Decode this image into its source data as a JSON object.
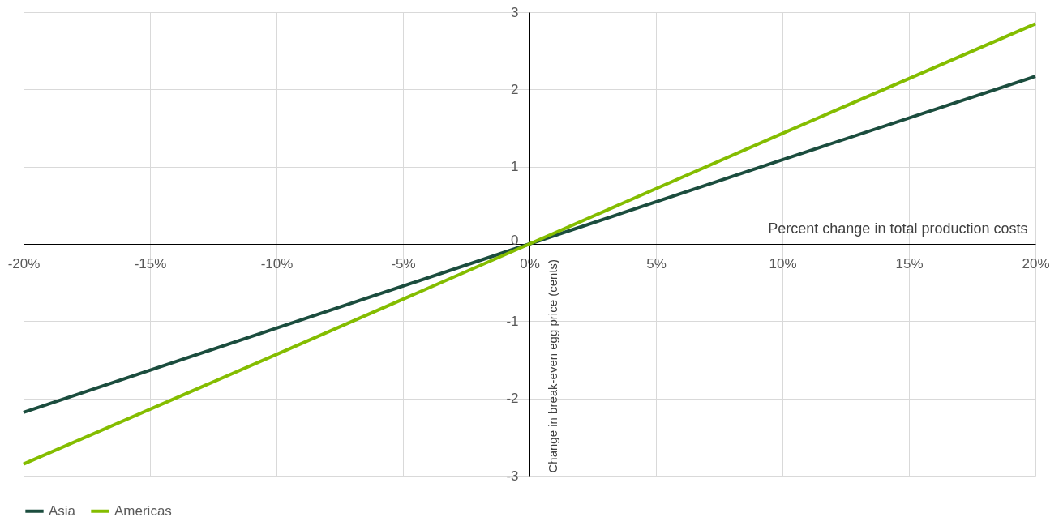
{
  "chart_data": {
    "type": "line",
    "xlabel": "Percent change in total production costs",
    "ylabel": "Change in break-even egg price (cents)",
    "x": [
      -20,
      -10,
      0,
      10,
      20
    ],
    "series": [
      {
        "name": "Asia",
        "color": "#1b4d3e",
        "values": [
          -2.18,
          -1.09,
          0,
          1.09,
          2.17
        ]
      },
      {
        "name": "Americas",
        "color": "#84bd00",
        "values": [
          -2.85,
          -1.43,
          0,
          1.43,
          2.85
        ]
      }
    ],
    "xlim": [
      -20,
      20
    ],
    "xticks": [
      {
        "value": -20,
        "label": "-20%"
      },
      {
        "value": -15,
        "label": "-15%"
      },
      {
        "value": -10,
        "label": "-10%"
      },
      {
        "value": -5,
        "label": "-5%"
      },
      {
        "value": 0,
        "label": "0%"
      },
      {
        "value": 5,
        "label": "5%"
      },
      {
        "value": 10,
        "label": "10%"
      },
      {
        "value": 15,
        "label": "15%"
      },
      {
        "value": 20,
        "label": "20%"
      }
    ],
    "ylim": [
      -3,
      3
    ],
    "yticks": [
      -3,
      -2,
      -1,
      0,
      1,
      2,
      3
    ],
    "grid": true,
    "legend": "bottom",
    "marker": "none",
    "line_style": "solid"
  }
}
